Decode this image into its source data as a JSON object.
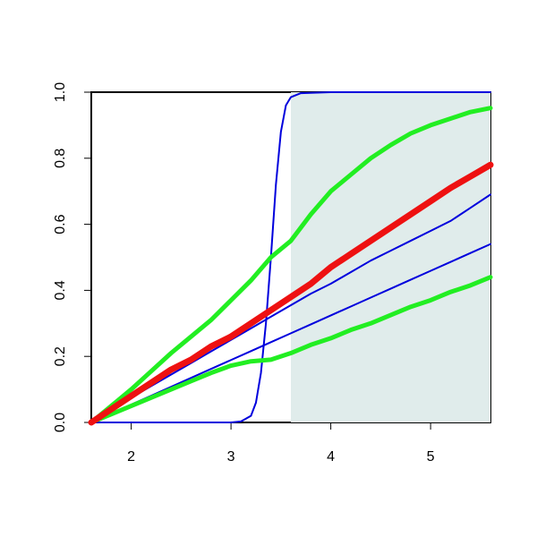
{
  "chart_data": {
    "type": "line",
    "xlim": [
      1.6,
      5.6
    ],
    "ylim": [
      0,
      1
    ],
    "xticks": [
      2,
      3,
      4,
      5
    ],
    "yticks": [
      {
        "value": 0,
        "label": "0.0"
      },
      0.2,
      0.4,
      0.6,
      0.8,
      {
        "value": 1,
        "label": "1.0"
      }
    ],
    "shaded_region": {
      "xmin": 3.6,
      "xmax": 5.6,
      "color": "#e0eceb"
    },
    "x": [
      1.6,
      1.8,
      2.0,
      2.2,
      2.4,
      2.6,
      2.8,
      3.0,
      3.2,
      3.4,
      3.6,
      3.8,
      4.0,
      4.2,
      4.4,
      4.6,
      4.8,
      5.0,
      5.2,
      5.4,
      5.6
    ],
    "series": [
      {
        "color": "#0000dd",
        "linewidth": 2,
        "x": [
          1.6,
          3.0,
          3.1,
          3.2,
          3.25,
          3.3,
          3.35,
          3.4,
          3.45,
          3.5,
          3.55,
          3.6,
          3.7,
          4.0,
          5.6
        ],
        "values": [
          0,
          0,
          0.003,
          0.02,
          0.06,
          0.15,
          0.3,
          0.5,
          0.72,
          0.88,
          0.96,
          0.985,
          0.997,
          1,
          1
        ]
      },
      {
        "color": "#0000dd",
        "linewidth": 2,
        "values": [
          0,
          0.04,
          0.075,
          0.11,
          0.145,
          0.18,
          0.215,
          0.25,
          0.285,
          0.32,
          0.355,
          0.39,
          0.42,
          0.455,
          0.49,
          0.52,
          0.55,
          0.58,
          0.61,
          0.65,
          0.69
        ]
      },
      {
        "color": "#0000dd",
        "linewidth": 2,
        "values": [
          0,
          0.027,
          0.054,
          0.081,
          0.108,
          0.135,
          0.162,
          0.189,
          0.216,
          0.243,
          0.27,
          0.297,
          0.324,
          0.351,
          0.378,
          0.405,
          0.432,
          0.459,
          0.486,
          0.513,
          0.54
        ]
      },
      {
        "color": "#22ee22",
        "linewidth": 5,
        "values": [
          0,
          0.05,
          0.1,
          0.155,
          0.21,
          0.26,
          0.31,
          0.37,
          0.43,
          0.5,
          0.55,
          0.63,
          0.7,
          0.75,
          0.8,
          0.84,
          0.875,
          0.9,
          0.92,
          0.94,
          0.952
        ]
      },
      {
        "color": "#22ee22",
        "linewidth": 5,
        "values": [
          0,
          0.025,
          0.05,
          0.075,
          0.1,
          0.125,
          0.15,
          0.172,
          0.185,
          0.19,
          0.21,
          0.235,
          0.255,
          0.28,
          0.3,
          0.325,
          0.35,
          0.37,
          0.395,
          0.415,
          0.44
        ]
      },
      {
        "color": "#ee1111",
        "linewidth": 7,
        "values": [
          0,
          0.04,
          0.08,
          0.12,
          0.16,
          0.19,
          0.23,
          0.26,
          0.3,
          0.34,
          0.38,
          0.42,
          0.47,
          0.51,
          0.55,
          0.59,
          0.63,
          0.67,
          0.71,
          0.745,
          0.78
        ]
      }
    ]
  }
}
